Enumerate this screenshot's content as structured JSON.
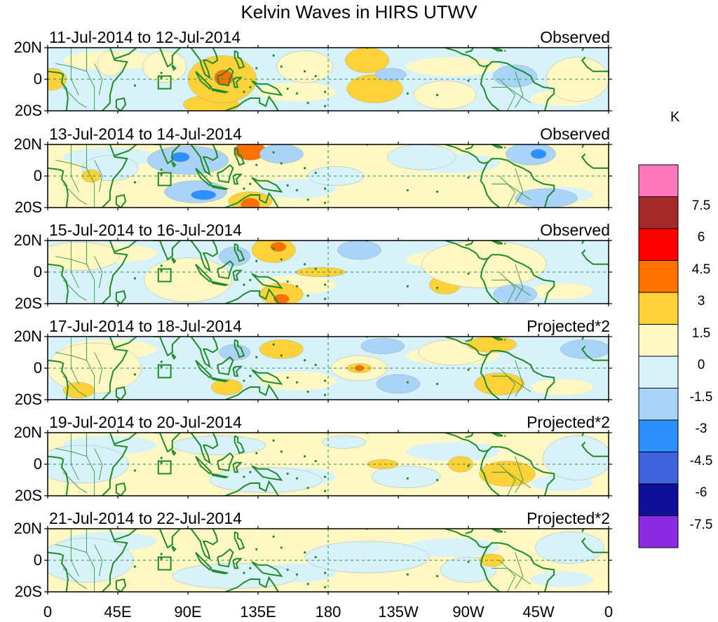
{
  "title": "Kelvin Waves in HIRS UTWV",
  "unit": "K",
  "colors": {
    "frame": "#000000",
    "coast": "#1f8a2a",
    "grid": "#2e8b57",
    "background": "#ffffff"
  },
  "axes": {
    "lat_ticks": [
      "20N",
      "0",
      "20S"
    ],
    "lon_ticks": [
      "0",
      "45E",
      "90E",
      "135E",
      "180",
      "135W",
      "90W",
      "45W",
      "0"
    ],
    "lon_values": [
      0,
      45,
      90,
      135,
      180,
      225,
      270,
      315,
      360
    ]
  },
  "colorbar": {
    "labels": [
      "7.5",
      "6",
      "4.5",
      "3",
      "1.5",
      "0",
      "-1.5",
      "-3",
      "-4.5",
      "-6",
      "-7.5"
    ],
    "colors": [
      "#ff77bb",
      "#a52a2a",
      "#ff0000",
      "#ff7200",
      "#ffd23a",
      "#fff8c4",
      "#d7f3f9",
      "#a9d3f7",
      "#2e90ff",
      "#3f63de",
      "#0f0f99",
      "#8b2be2"
    ]
  },
  "panels": [
    {
      "label": "11-Jul-2014 to 12-Jul-2014",
      "type": "Observed",
      "base": "#d7f3f9",
      "blobs": [
        {
          "lon": 2,
          "lat": 0,
          "rx": 10,
          "ry": 7,
          "level": 4
        },
        {
          "lon": 40,
          "lat": 10,
          "rx": 8,
          "ry": 8,
          "level": 5
        },
        {
          "lon": 75,
          "lat": 8,
          "rx": 14,
          "ry": 10,
          "level": 5
        },
        {
          "lon": 105,
          "lat": -16,
          "rx": 18,
          "ry": 6,
          "level": 4
        },
        {
          "lon": 112,
          "lat": 0,
          "rx": 22,
          "ry": 15,
          "level": 4
        },
        {
          "lon": 113,
          "lat": 1,
          "rx": 6,
          "ry": 5,
          "level": 3
        },
        {
          "lon": 165,
          "lat": 8,
          "rx": 18,
          "ry": 10,
          "level": 5
        },
        {
          "lon": 205,
          "lat": 12,
          "rx": 14,
          "ry": 8,
          "level": 4
        },
        {
          "lon": 210,
          "lat": -6,
          "rx": 18,
          "ry": 9,
          "level": 4
        },
        {
          "lon": 255,
          "lat": -10,
          "rx": 20,
          "ry": 9,
          "level": 5
        },
        {
          "lon": 220,
          "lat": 3,
          "rx": 10,
          "ry": 4,
          "level": 7
        },
        {
          "lon": 300,
          "lat": 2,
          "rx": 14,
          "ry": 7,
          "level": 7
        },
        {
          "lon": 340,
          "lat": 0,
          "rx": 20,
          "ry": 14,
          "level": 5
        }
      ]
    },
    {
      "label": "13-Jul-2014 to 14-Jul-2014",
      "type": "Observed",
      "base": "#fff8c4",
      "blobs": [
        {
          "lon": 40,
          "lat": 5,
          "rx": 18,
          "ry": 8,
          "level": 6
        },
        {
          "lon": 28,
          "lat": 0,
          "rx": 6,
          "ry": 4,
          "level": 4
        },
        {
          "lon": 90,
          "lat": 10,
          "rx": 26,
          "ry": 9,
          "level": 7
        },
        {
          "lon": 95,
          "lat": -10,
          "rx": 20,
          "ry": 7,
          "level": 7
        },
        {
          "lon": 100,
          "lat": -12,
          "rx": 8,
          "ry": 3,
          "level": 8
        },
        {
          "lon": 85,
          "lat": 12,
          "rx": 6,
          "ry": 3,
          "level": 8
        },
        {
          "lon": 130,
          "lat": 16,
          "rx": 10,
          "ry": 6,
          "level": 3
        },
        {
          "lon": 130,
          "lat": -16,
          "rx": 14,
          "ry": 6,
          "level": 4
        },
        {
          "lon": 130,
          "lat": -18,
          "rx": 6,
          "ry": 4,
          "level": 3
        },
        {
          "lon": 150,
          "lat": 14,
          "rx": 14,
          "ry": 6,
          "level": 7
        },
        {
          "lon": 185,
          "lat": 0,
          "rx": 18,
          "ry": 6,
          "level": 6
        },
        {
          "lon": 240,
          "lat": 12,
          "rx": 22,
          "ry": 8,
          "level": 6
        },
        {
          "lon": 310,
          "lat": 14,
          "rx": 16,
          "ry": 7,
          "level": 7
        },
        {
          "lon": 315,
          "lat": 14,
          "rx": 5,
          "ry": 3,
          "level": 8
        },
        {
          "lon": 320,
          "lat": -14,
          "rx": 20,
          "ry": 6,
          "level": 7
        }
      ]
    },
    {
      "label": "15-Jul-2014 to 16-Jul-2014",
      "type": "Observed",
      "base": "#d7f3f9",
      "blobs": [
        {
          "lon": 20,
          "lat": 10,
          "rx": 26,
          "ry": 9,
          "level": 5
        },
        {
          "lon": 90,
          "lat": -5,
          "rx": 28,
          "ry": 14,
          "level": 5
        },
        {
          "lon": 145,
          "lat": 14,
          "rx": 14,
          "ry": 8,
          "level": 4
        },
        {
          "lon": 148,
          "lat": 16,
          "rx": 5,
          "ry": 3,
          "level": 3
        },
        {
          "lon": 150,
          "lat": -14,
          "rx": 14,
          "ry": 7,
          "level": 4
        },
        {
          "lon": 150,
          "lat": -17,
          "rx": 5,
          "ry": 3,
          "level": 3
        },
        {
          "lon": 175,
          "lat": 0,
          "rx": 16,
          "ry": 3,
          "level": 4
        },
        {
          "lon": 120,
          "lat": 10,
          "rx": 10,
          "ry": 6,
          "level": 7
        },
        {
          "lon": 200,
          "lat": 14,
          "rx": 14,
          "ry": 6,
          "level": 7
        },
        {
          "lon": 255,
          "lat": -8,
          "rx": 10,
          "ry": 6,
          "level": 4
        },
        {
          "lon": 280,
          "lat": 5,
          "rx": 40,
          "ry": 15,
          "level": 5
        },
        {
          "lon": 300,
          "lat": -14,
          "rx": 14,
          "ry": 6,
          "level": 7
        }
      ]
    },
    {
      "label": "17-Jul-2014 to 18-Jul-2014",
      "type": "Projected*2",
      "base": "#d7f3f9",
      "blobs": [
        {
          "lon": 30,
          "lat": 0,
          "rx": 30,
          "ry": 16,
          "level": 5
        },
        {
          "lon": 20,
          "lat": -14,
          "rx": 10,
          "ry": 5,
          "level": 4
        },
        {
          "lon": 115,
          "lat": -12,
          "rx": 10,
          "ry": 5,
          "level": 4
        },
        {
          "lon": 120,
          "lat": 10,
          "rx": 10,
          "ry": 5,
          "level": 7
        },
        {
          "lon": 150,
          "lat": 12,
          "rx": 14,
          "ry": 6,
          "level": 4
        },
        {
          "lon": 200,
          "lat": 0,
          "rx": 18,
          "ry": 8,
          "level": 5
        },
        {
          "lon": 200,
          "lat": 0,
          "rx": 8,
          "ry": 3,
          "level": 4
        },
        {
          "lon": 200,
          "lat": 0,
          "rx": 3,
          "ry": 2,
          "level": 3
        },
        {
          "lon": 215,
          "lat": 14,
          "rx": 14,
          "ry": 5,
          "level": 7
        },
        {
          "lon": 225,
          "lat": -10,
          "rx": 14,
          "ry": 6,
          "level": 7
        },
        {
          "lon": 260,
          "lat": 10,
          "rx": 22,
          "ry": 8,
          "level": 5
        },
        {
          "lon": 285,
          "lat": 15,
          "rx": 16,
          "ry": 5,
          "level": 4
        },
        {
          "lon": 290,
          "lat": -10,
          "rx": 16,
          "ry": 7,
          "level": 4
        },
        {
          "lon": 345,
          "lat": 12,
          "rx": 16,
          "ry": 6,
          "level": 7
        }
      ]
    },
    {
      "label": "19-Jul-2014 to 20-Jul-2014",
      "type": "Projected*2",
      "base": "#fff8c4",
      "blobs": [
        {
          "lon": 22,
          "lat": 0,
          "rx": 30,
          "ry": 12,
          "level": 6
        },
        {
          "lon": 110,
          "lat": 12,
          "rx": 30,
          "ry": 6,
          "level": 6
        },
        {
          "lon": 140,
          "lat": -10,
          "rx": 36,
          "ry": 8,
          "level": 6
        },
        {
          "lon": 190,
          "lat": 14,
          "rx": 14,
          "ry": 4,
          "level": 6
        },
        {
          "lon": 230,
          "lat": -8,
          "rx": 22,
          "ry": 7,
          "level": 6
        },
        {
          "lon": 215,
          "lat": 0,
          "rx": 10,
          "ry": 3,
          "level": 4
        },
        {
          "lon": 265,
          "lat": 0,
          "rx": 8,
          "ry": 5,
          "level": 4
        },
        {
          "lon": 295,
          "lat": -6,
          "rx": 18,
          "ry": 8,
          "level": 4
        },
        {
          "lon": 340,
          "lat": 4,
          "rx": 22,
          "ry": 14,
          "level": 6
        }
      ]
    },
    {
      "label": "21-Jul-2014 to 22-Jul-2014",
      "type": "Projected*2",
      "base": "#fff8c4",
      "blobs": [
        {
          "lon": 25,
          "lat": 0,
          "rx": 30,
          "ry": 14,
          "level": 6
        },
        {
          "lon": 120,
          "lat": -10,
          "rx": 40,
          "ry": 8,
          "level": 6
        },
        {
          "lon": 205,
          "lat": 2,
          "rx": 40,
          "ry": 10,
          "level": 6
        },
        {
          "lon": 270,
          "lat": -6,
          "rx": 18,
          "ry": 8,
          "level": 6
        },
        {
          "lon": 285,
          "lat": 0,
          "rx": 8,
          "ry": 4,
          "level": 4
        },
        {
          "lon": 335,
          "lat": 8,
          "rx": 22,
          "ry": 10,
          "level": 6
        }
      ]
    }
  ]
}
